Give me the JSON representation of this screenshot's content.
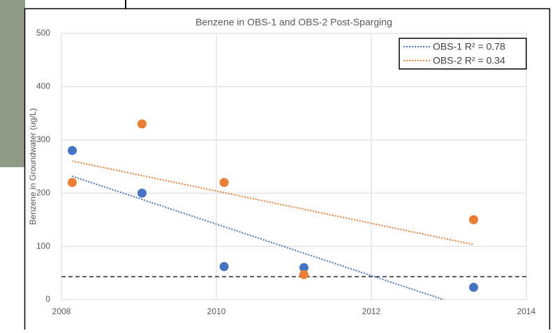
{
  "chart_data": {
    "type": "scatter",
    "title": "Benzene in OBS-1 and OBS-2 Post-Sparging",
    "y_label": "Benzene in Groundwater (ug/L)",
    "xlim": [
      2008,
      2014
    ],
    "xticks": [
      2008,
      2010,
      2012,
      2014
    ],
    "ylim": [
      0,
      500
    ],
    "yticks": [
      0,
      100,
      200,
      300,
      400,
      500
    ],
    "grid": true,
    "trendline": "linear",
    "legend": "top-right",
    "reference_line": {
      "value": 43,
      "color": "#000000"
    },
    "series": [
      {
        "name": "OBS-1 R² = 0.78",
        "color": "#4472c4",
        "x": [
          2008.14,
          2009.04,
          2010.1,
          2011.13,
          2013.32
        ],
        "values": [
          280,
          200,
          62,
          60,
          23
        ]
      },
      {
        "name": "OBS-2 R² = 0.34",
        "color": "#ed7d31",
        "x": [
          2008.14,
          2009.04,
          2010.1,
          2011.13,
          2013.32
        ],
        "values": [
          220,
          330,
          220,
          47,
          150
        ]
      }
    ]
  }
}
